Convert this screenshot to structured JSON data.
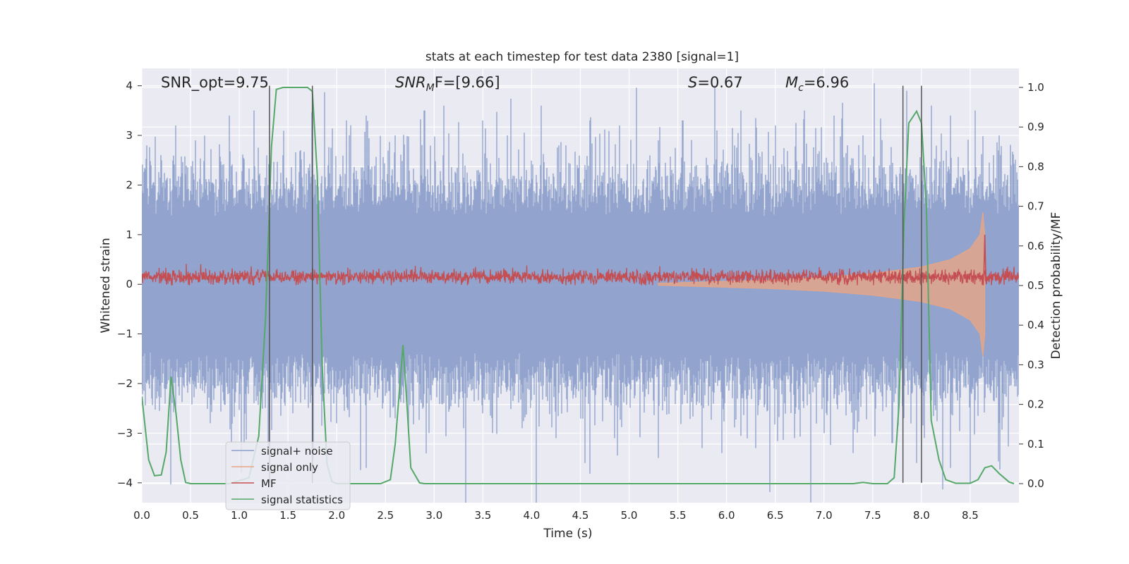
{
  "chart_data": {
    "type": "line",
    "title": "stats at each timestep for test data 2380 [signal=1]",
    "xlabel": "Time (s)",
    "ylabel": "Whitened strain",
    "y2label": "Detection probability/MF",
    "xlim": [
      0,
      9
    ],
    "ylim": [
      -4.4,
      4.35
    ],
    "y2lim": [
      -0.048,
      1.048
    ],
    "x_ticks": [
      0.0,
      0.5,
      1.0,
      1.5,
      2.0,
      2.5,
      3.0,
      3.5,
      4.0,
      4.5,
      5.0,
      5.5,
      6.0,
      6.5,
      7.0,
      7.5,
      8.0,
      8.5
    ],
    "x_tick_labels": [
      "0.0",
      "0.5",
      "1.0",
      "1.5",
      "2.0",
      "2.5",
      "3.0",
      "3.5",
      "4.0",
      "4.5",
      "5.0",
      "5.5",
      "6.0",
      "6.5",
      "7.0",
      "7.5",
      "8.0",
      "8.5"
    ],
    "y_ticks": [
      4,
      3,
      2,
      1,
      0,
      -1,
      -2,
      -3,
      -4
    ],
    "y_tick_labels": [
      "4",
      "3",
      "2",
      "1",
      "0",
      "−1",
      "−2",
      "−3",
      "−4"
    ],
    "y2_ticks": [
      1.0,
      0.9,
      0.8,
      0.7,
      0.6,
      0.5,
      0.4,
      0.3,
      0.2,
      0.1,
      0.0
    ],
    "y2_tick_labels": [
      "1.0",
      "0.9",
      "0.8",
      "0.7",
      "0.6",
      "0.5",
      "0.4",
      "0.3",
      "0.2",
      "0.1",
      "0.0"
    ],
    "grid": true,
    "legend_position": "lower-left",
    "annotations": {
      "snr_opt": "SNR_opt=9.75",
      "snr_mf_main": "SNR",
      "snr_mf_sub": "M",
      "snr_mf_tail": "F=[9.66]",
      "s_main": "S",
      "s_tail": "=0.67",
      "mc_main": "M",
      "mc_sub": "c",
      "mc_tail": "=6.96"
    },
    "vertical_lines": [
      1.31,
      1.75,
      7.81,
      8.0
    ],
    "series": [
      {
        "name": "signal+ noise",
        "color": "#8da0cb",
        "description_axis": "left",
        "noise_envelope_typical": 1.6,
        "noise_peaks": [
          [
            0.05,
            2.8
          ],
          [
            0.2,
            2.5
          ],
          [
            0.35,
            3.2
          ],
          [
            0.55,
            2.9
          ],
          [
            0.9,
            3.4
          ],
          [
            1.15,
            3.5
          ],
          [
            1.45,
            2.6
          ],
          [
            1.75,
            3.4
          ],
          [
            2.1,
            3.3
          ],
          [
            2.3,
            3.4
          ],
          [
            2.6,
            3.0
          ],
          [
            2.9,
            3.5
          ],
          [
            3.1,
            3.6
          ],
          [
            3.5,
            3.3
          ],
          [
            3.75,
            3.0
          ],
          [
            4.1,
            3.6
          ],
          [
            4.35,
            2.8
          ],
          [
            4.6,
            3.3
          ],
          [
            4.9,
            3.2
          ],
          [
            5.3,
            2.9
          ],
          [
            5.55,
            3.3
          ],
          [
            5.9,
            3.1
          ],
          [
            6.15,
            3.5
          ],
          [
            6.5,
            3.2
          ],
          [
            6.8,
            3.5
          ],
          [
            7.1,
            3.4
          ],
          [
            7.4,
            3.0
          ],
          [
            7.85,
            3.9
          ],
          [
            8.1,
            3.6
          ],
          [
            8.3,
            3.4
          ],
          [
            8.55,
            3.5
          ],
          [
            8.8,
            3.0
          ]
        ],
        "noise_troughs": [
          [
            0.1,
            -2.2
          ],
          [
            0.35,
            -2.6
          ],
          [
            0.7,
            -2.8
          ],
          [
            1.05,
            -3.2
          ],
          [
            1.3,
            -3.3
          ],
          [
            1.55,
            -2.6
          ],
          [
            2.0,
            -2.8
          ],
          [
            2.3,
            -3.7
          ],
          [
            2.6,
            -2.7
          ],
          [
            2.95,
            -3.0
          ],
          [
            3.3,
            -2.9
          ],
          [
            3.6,
            -3.0
          ],
          [
            3.9,
            -2.9
          ],
          [
            4.25,
            -3.1
          ],
          [
            4.55,
            -3.6
          ],
          [
            4.85,
            -3.1
          ],
          [
            5.3,
            -3.5
          ],
          [
            5.75,
            -3.3
          ],
          [
            5.95,
            -3.4
          ],
          [
            6.3,
            -3.3
          ],
          [
            6.7,
            -3.1
          ],
          [
            7.0,
            -3.0
          ],
          [
            7.3,
            -3.4
          ],
          [
            7.7,
            -3.2
          ],
          [
            7.95,
            -3.6
          ],
          [
            8.3,
            -3.7
          ],
          [
            8.5,
            -4.0
          ],
          [
            8.8,
            -2.8
          ]
        ]
      },
      {
        "name": "signal only",
        "color": "#e8a585",
        "description_axis": "left",
        "chirp_envelope": [
          [
            5.3,
            0.02
          ],
          [
            6.0,
            0.06
          ],
          [
            6.5,
            0.09
          ],
          [
            7.0,
            0.14
          ],
          [
            7.5,
            0.22
          ],
          [
            8.0,
            0.35
          ],
          [
            8.3,
            0.5
          ],
          [
            8.5,
            0.72
          ],
          [
            8.6,
            1.0
          ],
          [
            8.63,
            1.45
          ],
          [
            8.65,
            1.0
          ]
        ]
      },
      {
        "name": "MF",
        "color": "#c44e52",
        "description_axis": "left",
        "baseline": 0.15,
        "noise_amplitude": 0.12,
        "peak": [
          8.65,
          1.0
        ]
      },
      {
        "name": "signal statistics",
        "color": "#55a868",
        "description_axis": "right",
        "points": [
          [
            0.0,
            0.22
          ],
          [
            0.07,
            0.06
          ],
          [
            0.13,
            0.02
          ],
          [
            0.2,
            0.022
          ],
          [
            0.25,
            0.08
          ],
          [
            0.3,
            0.27
          ],
          [
            0.35,
            0.18
          ],
          [
            0.4,
            0.06
          ],
          [
            0.45,
            0.003
          ],
          [
            0.5,
            0.0
          ],
          [
            0.7,
            0.0
          ],
          [
            0.9,
            0.0
          ],
          [
            1.1,
            0.015
          ],
          [
            1.2,
            0.12
          ],
          [
            1.27,
            0.42
          ],
          [
            1.33,
            0.85
          ],
          [
            1.38,
            0.995
          ],
          [
            1.45,
            1.0
          ],
          [
            1.7,
            1.0
          ],
          [
            1.75,
            0.99
          ],
          [
            1.8,
            0.78
          ],
          [
            1.85,
            0.3
          ],
          [
            1.9,
            0.05
          ],
          [
            1.95,
            0.005
          ],
          [
            2.0,
            0.0
          ],
          [
            2.45,
            0.0
          ],
          [
            2.55,
            0.01
          ],
          [
            2.6,
            0.1
          ],
          [
            2.68,
            0.35
          ],
          [
            2.72,
            0.2
          ],
          [
            2.76,
            0.04
          ],
          [
            2.85,
            0.002
          ],
          [
            2.9,
            0.0
          ],
          [
            3.5,
            0.0
          ],
          [
            4.5,
            0.0
          ],
          [
            5.5,
            0.0
          ],
          [
            6.5,
            0.0
          ],
          [
            7.3,
            0.0
          ],
          [
            7.4,
            0.003
          ],
          [
            7.5,
            0.0
          ],
          [
            7.65,
            0.0
          ],
          [
            7.72,
            0.015
          ],
          [
            7.77,
            0.2
          ],
          [
            7.82,
            0.65
          ],
          [
            7.87,
            0.91
          ],
          [
            7.95,
            0.94
          ],
          [
            8.0,
            0.91
          ],
          [
            8.05,
            0.7
          ],
          [
            8.1,
            0.16
          ],
          [
            8.18,
            0.06
          ],
          [
            8.25,
            0.01
          ],
          [
            8.35,
            0.001
          ],
          [
            8.5,
            0.001
          ],
          [
            8.58,
            0.01
          ],
          [
            8.65,
            0.04
          ],
          [
            8.72,
            0.045
          ],
          [
            8.8,
            0.025
          ],
          [
            8.9,
            0.004
          ],
          [
            8.95,
            0.0
          ]
        ]
      }
    ]
  }
}
